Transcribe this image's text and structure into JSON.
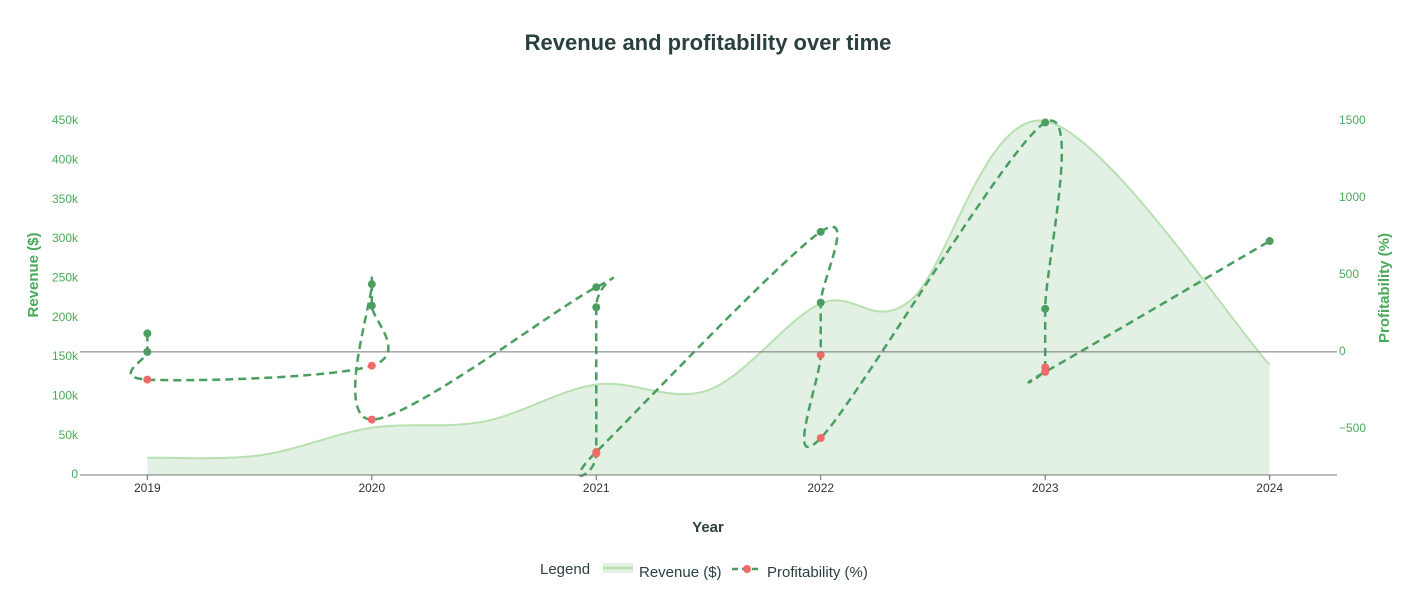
{
  "chart_data": {
    "type": "area",
    "title": "Revenue and profitability over time",
    "xlabel": "Year",
    "ylabel": "Revenue ($)",
    "y2label": "Profitability (%)",
    "x_ticks": [
      "2019",
      "2020",
      "2021",
      "2022",
      "2023",
      "2024"
    ],
    "y_ticks": [
      "0",
      "50k",
      "100k",
      "150k",
      "200k",
      "250k",
      "300k",
      "350k",
      "400k",
      "450k"
    ],
    "y2_ticks": [
      "−500",
      "0",
      "500",
      "1000",
      "1500"
    ],
    "xlim": [
      2018.7,
      2024.3
    ],
    "ylim": [
      0,
      450000
    ],
    "y2lim": [
      -800,
      1500
    ],
    "legend": {
      "title": "Legend",
      "position": "bottom"
    },
    "colors": {
      "revenue_line": "#b8e0b0",
      "revenue_fill": "#e2f1e3",
      "profit_line": "#4a9e60",
      "marker_high": "#4a9e60",
      "marker_low": "#f06a6a",
      "zero_line": "#777777",
      "axis_text": "#4aaa5a",
      "title": "#2a3f3f"
    },
    "series": [
      {
        "name": "Revenue ($)",
        "type": "area",
        "axis": "left",
        "x": [
          2019,
          2019.5,
          2020,
          2020.5,
          2021,
          2021.5,
          2022,
          2022.4,
          2023,
          2024
        ],
        "values": [
          22000,
          25000,
          60000,
          68000,
          115000,
          108000,
          218000,
          222000,
          450000,
          140000
        ]
      },
      {
        "name": "Profitability (%)",
        "type": "line",
        "axis": "right",
        "x": [
          2019,
          2019,
          2019,
          2020,
          2020,
          2020,
          2020,
          2021,
          2021,
          2021,
          2021,
          2022,
          2022,
          2022,
          2022,
          2023,
          2023,
          2023,
          2023,
          2024
        ],
        "values": [
          120,
          0,
          -180,
          -90,
          300,
          440,
          -440,
          420,
          290,
          -660,
          -650,
          780,
          320,
          -20,
          -560,
          1490,
          280,
          -100,
          -130,
          720
        ]
      }
    ]
  }
}
